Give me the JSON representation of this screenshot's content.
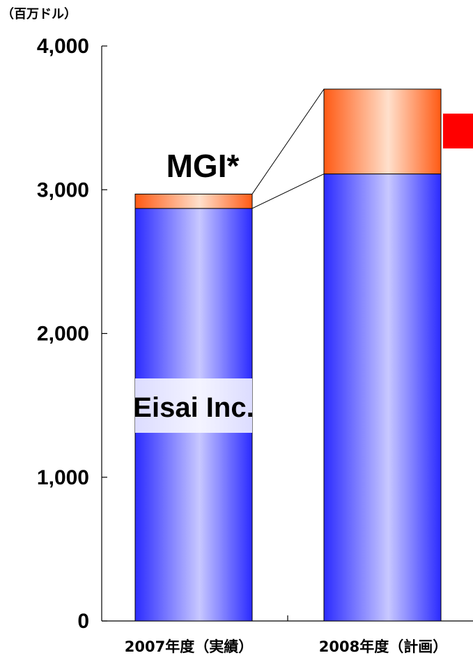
{
  "chart_data": {
    "type": "bar",
    "stacked": true,
    "unit_label": "（百万ドル）",
    "categories": [
      "2007年度（実績）",
      "2008年度（計画）"
    ],
    "series": [
      {
        "name": "Eisai Inc.",
        "values": [
          2870,
          3110
        ],
        "color": "#3a3aff"
      },
      {
        "name": "MGI*",
        "values": [
          100,
          590
        ],
        "color": "#ff6a2a"
      }
    ],
    "ylim": [
      0,
      4000
    ],
    "yticks": [
      0,
      1000,
      2000,
      3000,
      4000
    ],
    "ytick_labels": [
      "0",
      "1,000",
      "2,000",
      "3,000",
      "4,000"
    ],
    "grid": false,
    "legend": "none"
  },
  "marker_color": "#ff0000"
}
